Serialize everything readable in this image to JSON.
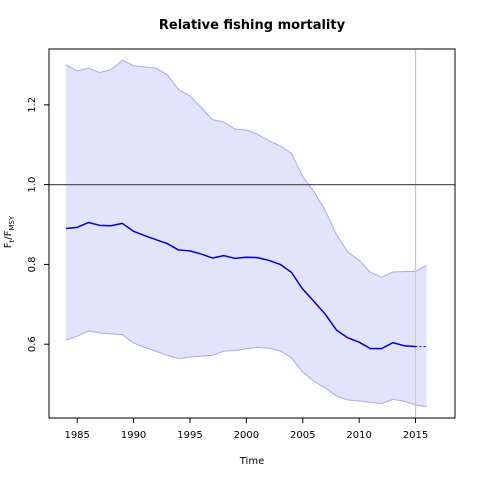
{
  "chart_data": {
    "type": "line",
    "title": "Relative fishing mortality",
    "xlabel": "Time",
    "ylabel": {
      "base": "F",
      "sub1": "t",
      "mid": "/F",
      "sub2": "MSY"
    },
    "xlim": [
      1982.5,
      2018.5
    ],
    "ylim": [
      0.415,
      1.34
    ],
    "xticks": [
      1985,
      1990,
      1995,
      2000,
      2005,
      2010,
      2015
    ],
    "yticks": [
      0.6,
      0.8,
      1.0,
      1.2
    ],
    "reference_line_y": 1.0,
    "vline_x": 2015,
    "colors": {
      "line": "#0000cc",
      "band_fill": "#e3e3fc",
      "band_edge": "#a9a9f0",
      "reference": "#555555",
      "vline": "#c8c8c8"
    },
    "series": [
      {
        "role": "estimate",
        "x": [
          1984,
          1985,
          1986,
          1987,
          1988,
          1989,
          1990,
          1991,
          1992,
          1993,
          1994,
          1995,
          1996,
          1997,
          1998,
          1999,
          2000,
          2001,
          2002,
          2003,
          2004,
          2005,
          2006,
          2007,
          2008,
          2009,
          2010,
          2011,
          2012,
          2013,
          2014,
          2015
        ],
        "y": [
          0.89,
          0.893,
          0.905,
          0.898,
          0.897,
          0.903,
          0.883,
          0.872,
          0.862,
          0.852,
          0.836,
          0.834,
          0.826,
          0.816,
          0.822,
          0.815,
          0.818,
          0.817,
          0.81,
          0.8,
          0.78,
          0.738,
          0.707,
          0.675,
          0.635,
          0.616,
          0.605,
          0.589,
          0.589,
          0.604,
          0.596,
          0.594
        ]
      },
      {
        "role": "estimate-projection",
        "x": [
          2015,
          2016
        ],
        "y": [
          0.594,
          0.594
        ]
      },
      {
        "role": "upper",
        "x": [
          1984,
          1985,
          1986,
          1987,
          1988,
          1989,
          1990,
          1991,
          1992,
          1993,
          1994,
          1995,
          1996,
          1997,
          1998,
          1999,
          2000,
          2001,
          2002,
          2003,
          2004,
          2005,
          2006,
          2007,
          2008,
          2009,
          2010,
          2011,
          2012,
          2013,
          2014,
          2015,
          2016
        ],
        "y": [
          1.3,
          1.285,
          1.292,
          1.281,
          1.288,
          1.312,
          1.298,
          1.295,
          1.292,
          1.275,
          1.238,
          1.222,
          1.193,
          1.163,
          1.157,
          1.139,
          1.137,
          1.126,
          1.11,
          1.097,
          1.078,
          1.02,
          0.982,
          0.935,
          0.874,
          0.831,
          0.81,
          0.78,
          0.768,
          0.781,
          0.782,
          0.783,
          0.798
        ]
      },
      {
        "role": "lower",
        "x": [
          1984,
          1985,
          1986,
          1987,
          1988,
          1989,
          1990,
          1991,
          1992,
          1993,
          1994,
          1995,
          1996,
          1997,
          1998,
          1999,
          2000,
          2001,
          2002,
          2003,
          2004,
          2005,
          2006,
          2007,
          2008,
          2009,
          2010,
          2011,
          2012,
          2013,
          2014,
          2015,
          2016
        ],
        "y": [
          0.61,
          0.62,
          0.633,
          0.628,
          0.626,
          0.624,
          0.603,
          0.592,
          0.582,
          0.572,
          0.564,
          0.568,
          0.57,
          0.572,
          0.583,
          0.584,
          0.589,
          0.592,
          0.59,
          0.583,
          0.566,
          0.53,
          0.507,
          0.49,
          0.47,
          0.46,
          0.458,
          0.454,
          0.451,
          0.462,
          0.457,
          0.448,
          0.443
        ]
      }
    ]
  }
}
